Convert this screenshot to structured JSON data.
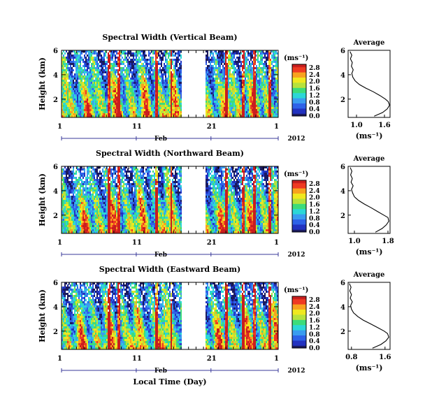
{
  "chart_data": {
    "type": "heatmap",
    "xlabel": "Local Time (Day)",
    "colorbar": {
      "unit": "(ms⁻¹)",
      "ticks": [
        "0.0",
        "0.4",
        "0.8",
        "1.2",
        "1.6",
        "2.0",
        "2.4",
        "2.8"
      ],
      "range": [
        0,
        3.0
      ],
      "palette": [
        "#1a1a60",
        "#2233c0",
        "#2e62e8",
        "#3a9cf0",
        "#2cd7d7",
        "#3ddc7a",
        "#b7e23c",
        "#f0e81f",
        "#f8a21e",
        "#ef3a22",
        "#c81e1e"
      ]
    },
    "x_axis": {
      "ticks": [
        "1",
        "11",
        "21",
        "1"
      ],
      "tick_days": [
        1,
        11,
        21,
        30
      ],
      "month_label": "Feb",
      "year_label": "2012",
      "range_days": [
        1,
        30
      ]
    },
    "y_axis": {
      "label": "Height (km)",
      "ticks": [
        "2",
        "4",
        "6"
      ],
      "range": [
        0.5,
        6
      ]
    },
    "data_gap_days": [
      17,
      20.2
    ],
    "panels": [
      {
        "title": "Spectral Width (Vertical Beam)",
        "profile": {
          "title": "Average",
          "xlabel": "(ms⁻¹)",
          "xticks": [
            "1.0",
            "1.6"
          ],
          "xtick_values": [
            1.0,
            1.6
          ],
          "xlim": [
            0.82,
            1.72
          ],
          "ylim": [
            0.5,
            6
          ],
          "points": [
            [
              1.38,
              0.6
            ],
            [
              1.56,
              0.9
            ],
            [
              1.66,
              1.2
            ],
            [
              1.71,
              1.5
            ],
            [
              1.68,
              1.8
            ],
            [
              1.62,
              2.0
            ],
            [
              1.5,
              2.3
            ],
            [
              1.36,
              2.6
            ],
            [
              1.2,
              2.9
            ],
            [
              1.06,
              3.2
            ],
            [
              0.97,
              3.5
            ],
            [
              0.92,
              3.8
            ],
            [
              0.9,
              4.1
            ],
            [
              0.93,
              4.4
            ],
            [
              0.89,
              4.7
            ],
            [
              0.91,
              5.0
            ],
            [
              0.87,
              5.3
            ],
            [
              0.9,
              5.6
            ],
            [
              0.86,
              5.9
            ]
          ]
        }
      },
      {
        "title": "Spectral Width (Northward Beam)",
        "profile": {
          "title": "Average",
          "xlabel": "(ms⁻¹)",
          "xticks": [
            "1.0",
            "1.8"
          ],
          "xtick_values": [
            1.0,
            1.8
          ],
          "xlim": [
            0.85,
            1.85
          ],
          "ylim": [
            0.5,
            6
          ],
          "points": [
            [
              1.5,
              0.6
            ],
            [
              1.66,
              0.9
            ],
            [
              1.76,
              1.2
            ],
            [
              1.82,
              1.5
            ],
            [
              1.8,
              1.8
            ],
            [
              1.7,
              2.0
            ],
            [
              1.55,
              2.3
            ],
            [
              1.4,
              2.6
            ],
            [
              1.24,
              2.9
            ],
            [
              1.1,
              3.2
            ],
            [
              1.0,
              3.5
            ],
            [
              0.96,
              3.8
            ],
            [
              0.93,
              4.1
            ],
            [
              0.97,
              4.4
            ],
            [
              0.92,
              4.7
            ],
            [
              0.95,
              5.0
            ],
            [
              0.91,
              5.3
            ],
            [
              0.94,
              5.6
            ],
            [
              0.9,
              5.9
            ]
          ]
        }
      },
      {
        "title": "Spectral Width (Eastward Beam)",
        "profile": {
          "title": "Average",
          "xlabel": "(ms⁻¹)",
          "xticks": [
            "0.8",
            "1.6"
          ],
          "xtick_values": [
            0.8,
            1.6
          ],
          "xlim": [
            0.72,
            1.72
          ],
          "ylim": [
            0.5,
            6
          ],
          "points": [
            [
              1.3,
              0.6
            ],
            [
              1.5,
              0.9
            ],
            [
              1.62,
              1.2
            ],
            [
              1.69,
              1.5
            ],
            [
              1.66,
              1.8
            ],
            [
              1.58,
              2.0
            ],
            [
              1.42,
              2.3
            ],
            [
              1.25,
              2.6
            ],
            [
              1.08,
              2.9
            ],
            [
              0.95,
              3.2
            ],
            [
              0.85,
              3.5
            ],
            [
              0.8,
              3.8
            ],
            [
              0.78,
              4.1
            ],
            [
              0.82,
              4.4
            ],
            [
              0.77,
              4.7
            ],
            [
              0.8,
              5.0
            ],
            [
              0.76,
              5.3
            ],
            [
              0.79,
              5.6
            ],
            [
              0.75,
              5.9
            ]
          ]
        }
      }
    ]
  }
}
